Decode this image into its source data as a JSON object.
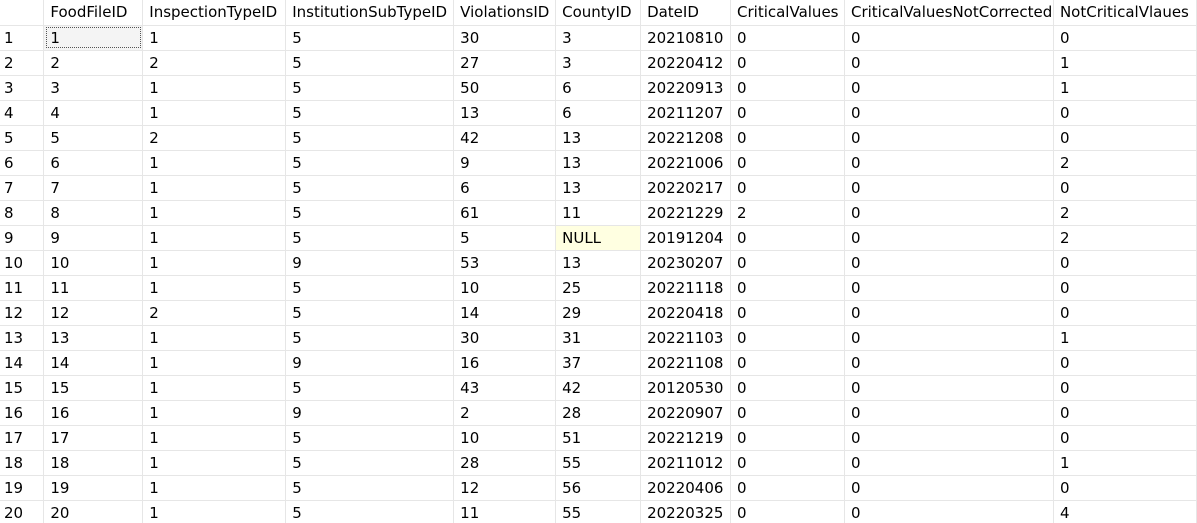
{
  "columns": [
    "",
    "FoodFileID",
    "InspectionTypeID",
    "InstitutionSubTypeID",
    "ViolationsID",
    "CountyID",
    "DateID",
    "CriticalValues",
    "CriticalValuesNotCorrected",
    "NotCriticalVlaues"
  ],
  "rows": [
    [
      "1",
      "1",
      "1",
      "5",
      "30",
      "3",
      "20210810",
      "0",
      "0",
      "0"
    ],
    [
      "2",
      "2",
      "2",
      "5",
      "27",
      "3",
      "20220412",
      "0",
      "0",
      "1"
    ],
    [
      "3",
      "3",
      "1",
      "5",
      "50",
      "6",
      "20220913",
      "0",
      "0",
      "1"
    ],
    [
      "4",
      "4",
      "1",
      "5",
      "13",
      "6",
      "20211207",
      "0",
      "0",
      "0"
    ],
    [
      "5",
      "5",
      "2",
      "5",
      "42",
      "13",
      "20221208",
      "0",
      "0",
      "0"
    ],
    [
      "6",
      "6",
      "1",
      "5",
      "9",
      "13",
      "20221006",
      "0",
      "0",
      "2"
    ],
    [
      "7",
      "7",
      "1",
      "5",
      "6",
      "13",
      "20220217",
      "0",
      "0",
      "0"
    ],
    [
      "8",
      "8",
      "1",
      "5",
      "61",
      "11",
      "20221229",
      "2",
      "0",
      "2"
    ],
    [
      "9",
      "9",
      "1",
      "5",
      "5",
      "NULL",
      "20191204",
      "0",
      "0",
      "2"
    ],
    [
      "10",
      "10",
      "1",
      "9",
      "53",
      "13",
      "20230207",
      "0",
      "0",
      "0"
    ],
    [
      "11",
      "11",
      "1",
      "5",
      "10",
      "25",
      "20221118",
      "0",
      "0",
      "0"
    ],
    [
      "12",
      "12",
      "2",
      "5",
      "14",
      "29",
      "20220418",
      "0",
      "0",
      "0"
    ],
    [
      "13",
      "13",
      "1",
      "5",
      "30",
      "31",
      "20221103",
      "0",
      "0",
      "1"
    ],
    [
      "14",
      "14",
      "1",
      "9",
      "16",
      "37",
      "20221108",
      "0",
      "0",
      "0"
    ],
    [
      "15",
      "15",
      "1",
      "5",
      "43",
      "42",
      "20120530",
      "0",
      "0",
      "0"
    ],
    [
      "16",
      "16",
      "1",
      "9",
      "2",
      "28",
      "20220907",
      "0",
      "0",
      "0"
    ],
    [
      "17",
      "17",
      "1",
      "5",
      "10",
      "51",
      "20221219",
      "0",
      "0",
      "0"
    ],
    [
      "18",
      "18",
      "1",
      "5",
      "28",
      "55",
      "20211012",
      "0",
      "0",
      "1"
    ],
    [
      "19",
      "19",
      "1",
      "5",
      "12",
      "56",
      "20220406",
      "0",
      "0",
      "0"
    ],
    [
      "20",
      "20",
      "1",
      "5",
      "11",
      "55",
      "20220325",
      "0",
      "0",
      "4"
    ]
  ]
}
